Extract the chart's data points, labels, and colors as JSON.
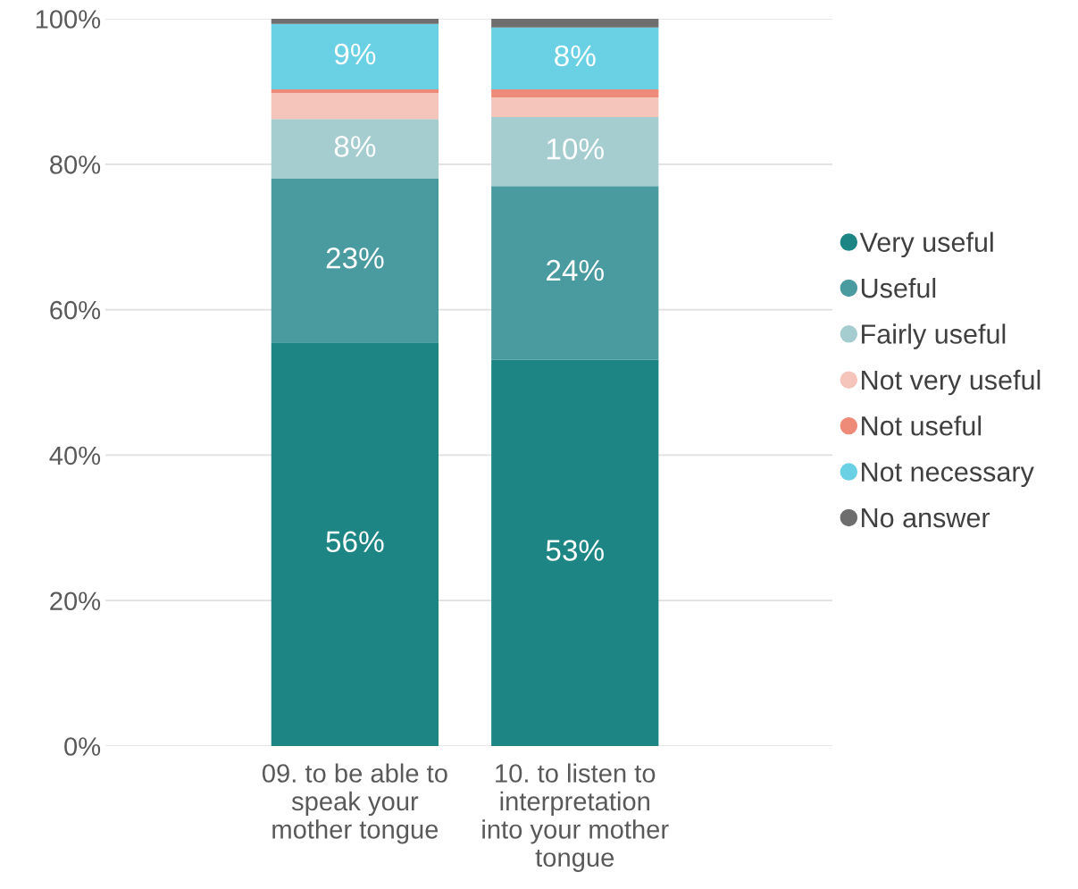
{
  "chart_data": {
    "type": "bar",
    "stacked": true,
    "categories": [
      "09. to be able to\nspeak your\nmother tongue",
      "10. to listen to\ninterpretation\ninto your mother\ntongue"
    ],
    "ylim": [
      0,
      100
    ],
    "yticks": [
      {
        "value": 0,
        "label": "0%"
      },
      {
        "value": 20,
        "label": "20%"
      },
      {
        "value": 40,
        "label": "40%"
      },
      {
        "value": 60,
        "label": "60%"
      },
      {
        "value": 80,
        "label": "80%"
      },
      {
        "value": 100,
        "label": "100%"
      }
    ],
    "grid": "y",
    "legend": "right",
    "series": [
      {
        "name": "Very useful",
        "color": "#1e8585",
        "values": [
          55.5,
          53.1
        ],
        "value_labels": [
          "56%",
          "53%"
        ]
      },
      {
        "name": "Useful",
        "color": "#4a9ba0",
        "values": [
          22.5,
          23.9
        ],
        "value_labels": [
          "23%",
          "24%"
        ]
      },
      {
        "name": "Fairly useful",
        "color": "#a5cdd0",
        "values": [
          8.2,
          9.5
        ],
        "value_labels": [
          "8%",
          "10%"
        ]
      },
      {
        "name": "Not very useful",
        "color": "#f5c4ba",
        "values": [
          3.6,
          2.7
        ],
        "value_labels": [
          null,
          null
        ]
      },
      {
        "name": "Not useful",
        "color": "#ee8a78",
        "values": [
          0.5,
          1.1
        ],
        "value_labels": [
          null,
          null
        ]
      },
      {
        "name": "Not necessary",
        "color": "#6ad0e4",
        "values": [
          9.0,
          8.5
        ],
        "value_labels": [
          "9%",
          "8%"
        ]
      },
      {
        "name": "No answer",
        "color": "#6e6e6e",
        "values": [
          0.7,
          1.2
        ],
        "value_labels": [
          null,
          null
        ]
      }
    ]
  }
}
